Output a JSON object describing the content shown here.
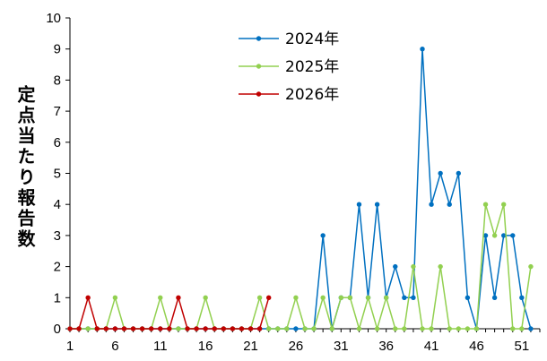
{
  "chart_data": {
    "type": "line",
    "title": "",
    "xlabel": "",
    "ylabel": "定点当たり報告数",
    "xlim": [
      1,
      53
    ],
    "ylim": [
      0,
      10
    ],
    "yticks": [
      0,
      1,
      2,
      3,
      4,
      5,
      6,
      7,
      8,
      9,
      10
    ],
    "xticks": [
      1,
      6,
      11,
      16,
      21,
      26,
      31,
      36,
      41,
      46,
      51
    ],
    "grid": false,
    "legend_position": "top-center",
    "series": [
      {
        "name": "2024年",
        "color": "#0070c0",
        "x": [
          1,
          2,
          3,
          4,
          5,
          6,
          7,
          8,
          9,
          10,
          11,
          12,
          13,
          14,
          15,
          16,
          17,
          18,
          19,
          20,
          21,
          22,
          23,
          24,
          25,
          26,
          27,
          28,
          29,
          30,
          31,
          32,
          33,
          34,
          35,
          36,
          37,
          38,
          39,
          40,
          41,
          42,
          43,
          44,
          45,
          46,
          47,
          48,
          49,
          50,
          51,
          52
        ],
        "values": [
          0,
          0,
          0,
          0,
          0,
          0,
          0,
          0,
          0,
          0,
          0,
          0,
          0,
          0,
          0,
          0,
          0,
          0,
          0,
          0,
          0,
          0,
          0,
          0,
          0,
          0,
          0,
          0,
          3,
          0,
          1,
          1,
          4,
          1,
          4,
          1,
          2,
          1,
          1,
          9,
          4,
          5,
          4,
          5,
          1,
          0,
          3,
          1,
          3,
          3,
          1,
          0
        ]
      },
      {
        "name": "2025年",
        "color": "#92d050",
        "x": [
          1,
          2,
          3,
          4,
          5,
          6,
          7,
          8,
          9,
          10,
          11,
          12,
          13,
          14,
          15,
          16,
          17,
          18,
          19,
          20,
          21,
          22,
          23,
          24,
          25,
          26,
          27,
          28,
          29,
          30,
          31,
          32,
          33,
          34,
          35,
          36,
          37,
          38,
          39,
          40,
          41,
          42,
          43,
          44,
          45,
          46,
          47,
          48,
          49,
          50,
          51,
          52
        ],
        "values": [
          0,
          0,
          0,
          0,
          0,
          1,
          0,
          0,
          0,
          0,
          1,
          0,
          0,
          0,
          0,
          1,
          0,
          0,
          0,
          0,
          0,
          1,
          0,
          0,
          0,
          1,
          0,
          0,
          1,
          0,
          1,
          1,
          0,
          1,
          0,
          1,
          0,
          0,
          2,
          0,
          0,
          2,
          0,
          0,
          0,
          0,
          4,
          3,
          4,
          0,
          0,
          2
        ]
      },
      {
        "name": "2026年",
        "color": "#c00000",
        "x": [
          1,
          2,
          3,
          4,
          5,
          6,
          7,
          8,
          9,
          10,
          11,
          12,
          13,
          14,
          15,
          16,
          17,
          18,
          19,
          20,
          21,
          22,
          23
        ],
        "values": [
          0,
          0,
          1,
          0,
          0,
          0,
          0,
          0,
          0,
          0,
          0,
          0,
          1,
          0,
          0,
          0,
          0,
          0,
          0,
          0,
          0,
          0,
          1
        ]
      }
    ]
  }
}
